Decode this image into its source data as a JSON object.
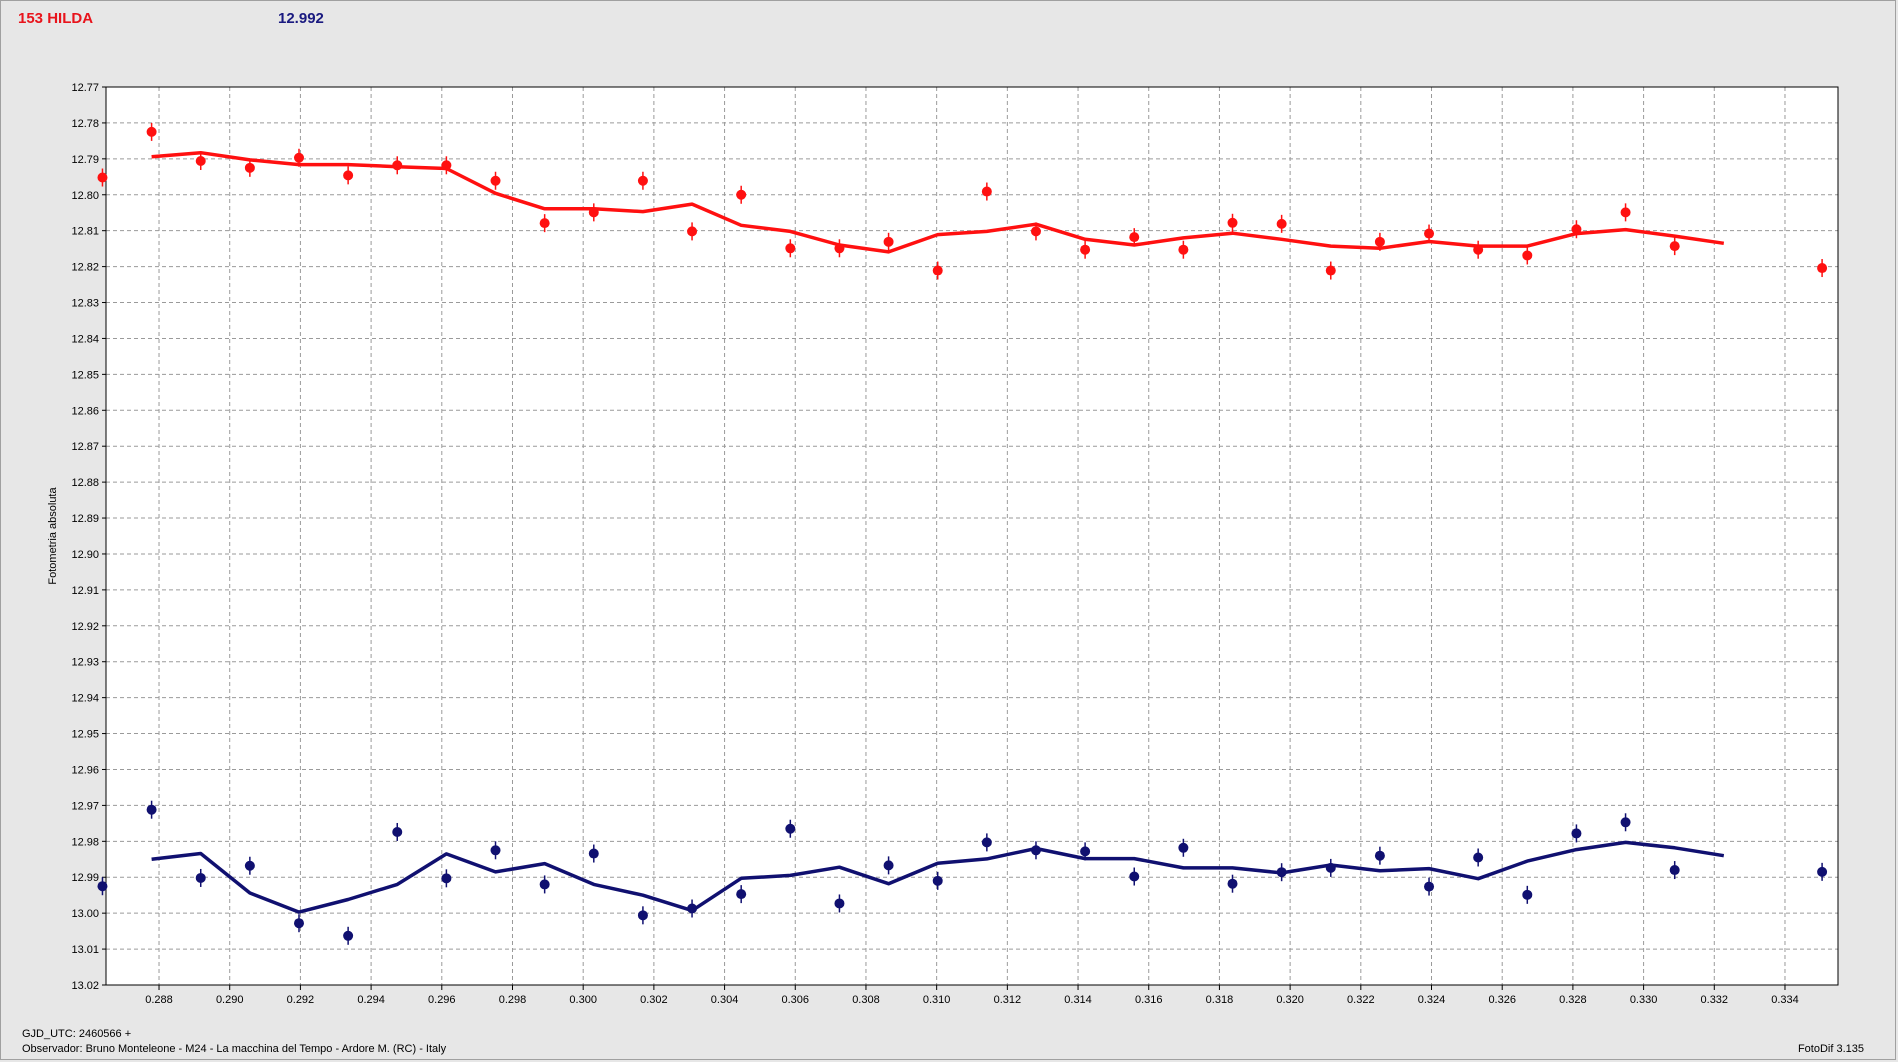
{
  "header": {
    "object_name": "153 HILDA",
    "magnitude": "12.992"
  },
  "footer": {
    "gjd": "GJD_UTC: 2460566 +",
    "observer": "Observador: Bruno Monteleone - M24 - La macchina del Tempo - Ardore M. (RC) - Italy",
    "software": "FotoDif 3.135"
  },
  "colors": {
    "target": "#ff1010",
    "comparison": "#101070",
    "grid": "#9a9a9a"
  },
  "chart_data": {
    "type": "scatter",
    "ylabel": "Fotometria absoluta",
    "xlabel": "",
    "xlim": [
      0.2865,
      0.3355
    ],
    "ylim": [
      12.77,
      13.02
    ],
    "y_inverted": true,
    "grid": true,
    "x_ticks": [
      "0.288",
      "0.290",
      "0.292",
      "0.294",
      "0.296",
      "0.298",
      "0.300",
      "0.302",
      "0.304",
      "0.306",
      "0.308",
      "0.310",
      "0.312",
      "0.314",
      "0.316",
      "0.318",
      "0.320",
      "0.322",
      "0.324",
      "0.326",
      "0.328",
      "0.330",
      "0.332",
      "0.334"
    ],
    "y_ticks": [
      "12.77",
      "12.78",
      "12.79",
      "12.80",
      "12.81",
      "12.82",
      "12.83",
      "12.84",
      "12.85",
      "12.86",
      "12.87",
      "12.88",
      "12.89",
      "12.90",
      "12.91",
      "12.92",
      "12.93",
      "12.94",
      "12.95",
      "12.96",
      "12.97",
      "12.98",
      "12.99",
      "13.00",
      "13.01",
      "13.02"
    ],
    "series": [
      {
        "color": "#ff1010",
        "points": [
          [
            0.2864,
            12.7952
          ],
          [
            0.28779,
            12.7825
          ],
          [
            0.28918,
            12.7906
          ],
          [
            0.29057,
            12.7925
          ],
          [
            0.29196,
            12.7897
          ],
          [
            0.29335,
            12.7946
          ],
          [
            0.29474,
            12.7918
          ],
          [
            0.29613,
            12.7918
          ],
          [
            0.29752,
            12.7961
          ],
          [
            0.29891,
            12.8079
          ],
          [
            0.3003,
            12.8049
          ],
          [
            0.30169,
            12.7961
          ],
          [
            0.30308,
            12.8102
          ],
          [
            0.30447,
            12.8
          ],
          [
            0.30586,
            12.8149
          ],
          [
            0.30725,
            12.8149
          ],
          [
            0.30864,
            12.8131
          ],
          [
            0.31003,
            12.8211
          ],
          [
            0.31142,
            12.7991
          ],
          [
            0.31281,
            12.8102
          ],
          [
            0.3142,
            12.8153
          ],
          [
            0.31559,
            12.8118
          ],
          [
            0.31698,
            12.8153
          ],
          [
            0.31837,
            12.8078
          ],
          [
            0.31976,
            12.8081
          ],
          [
            0.32115,
            12.8211
          ],
          [
            0.32254,
            12.8131
          ],
          [
            0.32393,
            12.8108
          ],
          [
            0.32532,
            12.8153
          ],
          [
            0.32671,
            12.8169
          ],
          [
            0.3281,
            12.8096
          ],
          [
            0.32949,
            12.8049
          ],
          [
            0.33088,
            12.8143
          ],
          [
            0.33505,
            12.8204
          ]
        ],
        "smooth": [
          [
            0.28779,
            12.7894
          ],
          [
            0.28918,
            12.7883
          ],
          [
            0.29057,
            12.7903
          ],
          [
            0.29196,
            12.7916
          ],
          [
            0.29335,
            12.7916
          ],
          [
            0.29474,
            12.7922
          ],
          [
            0.29613,
            12.7927
          ],
          [
            0.29752,
            12.7996
          ],
          [
            0.29891,
            12.8039
          ],
          [
            0.3003,
            12.8039
          ],
          [
            0.30169,
            12.8047
          ],
          [
            0.30308,
            12.8026
          ],
          [
            0.30447,
            12.8085
          ],
          [
            0.30586,
            12.8102
          ],
          [
            0.30725,
            12.814
          ],
          [
            0.30864,
            12.8159
          ],
          [
            0.31003,
            12.8111
          ],
          [
            0.31142,
            12.8102
          ],
          [
            0.31281,
            12.8082
          ],
          [
            0.3142,
            12.8124
          ],
          [
            0.31559,
            12.814
          ],
          [
            0.31698,
            12.812
          ],
          [
            0.31837,
            12.8107
          ],
          [
            0.31976,
            12.8124
          ],
          [
            0.32115,
            12.8143
          ],
          [
            0.32254,
            12.8149
          ],
          [
            0.32393,
            12.813
          ],
          [
            0.32532,
            12.8143
          ],
          [
            0.32671,
            12.8143
          ],
          [
            0.3281,
            12.8108
          ],
          [
            0.32949,
            12.8097
          ],
          [
            0.33088,
            12.8115
          ],
          [
            0.33227,
            12.8135
          ]
        ]
      },
      {
        "color": "#101070",
        "points": [
          [
            0.2864,
            12.9925
          ],
          [
            0.28779,
            12.9712
          ],
          [
            0.28918,
            12.9902
          ],
          [
            0.29057,
            12.9868
          ],
          [
            0.29196,
            13.0028
          ],
          [
            0.29335,
            13.0063
          ],
          [
            0.29474,
            12.9774
          ],
          [
            0.29613,
            12.9903
          ],
          [
            0.29752,
            12.9825
          ],
          [
            0.29891,
            12.992
          ],
          [
            0.3003,
            12.9834
          ],
          [
            0.30169,
            13.0006
          ],
          [
            0.30308,
            12.9987
          ],
          [
            0.30447,
            12.9947
          ],
          [
            0.30586,
            12.9765
          ],
          [
            0.30725,
            12.9973
          ],
          [
            0.30864,
            12.9867
          ],
          [
            0.31003,
            12.991
          ],
          [
            0.31142,
            12.9803
          ],
          [
            0.31281,
            12.9825
          ],
          [
            0.3142,
            12.9828
          ],
          [
            0.31559,
            12.9898
          ],
          [
            0.31698,
            12.9818
          ],
          [
            0.31837,
            12.9918
          ],
          [
            0.31976,
            12.9886
          ],
          [
            0.32115,
            12.9874
          ],
          [
            0.32254,
            12.984
          ],
          [
            0.32393,
            12.9926
          ],
          [
            0.32532,
            12.9845
          ],
          [
            0.32671,
            12.9949
          ],
          [
            0.3281,
            12.9778
          ],
          [
            0.32949,
            12.9747
          ],
          [
            0.33088,
            12.988
          ],
          [
            0.33505,
            12.9885
          ]
        ],
        "smooth": [
          [
            0.28779,
            12.985
          ],
          [
            0.28918,
            12.9834
          ],
          [
            0.29057,
            12.9944
          ],
          [
            0.29196,
            12.9997
          ],
          [
            0.29335,
            12.9962
          ],
          [
            0.29474,
            12.992
          ],
          [
            0.29613,
            12.9835
          ],
          [
            0.29752,
            12.9885
          ],
          [
            0.29891,
            12.9862
          ],
          [
            0.3003,
            12.992
          ],
          [
            0.30169,
            12.995
          ],
          [
            0.30308,
            12.9993
          ],
          [
            0.30447,
            12.9903
          ],
          [
            0.30586,
            12.9895
          ],
          [
            0.30725,
            12.9872
          ],
          [
            0.30864,
            12.9918
          ],
          [
            0.31003,
            12.9861
          ],
          [
            0.31142,
            12.9849
          ],
          [
            0.31281,
            12.982
          ],
          [
            0.3142,
            12.9848
          ],
          [
            0.31559,
            12.9848
          ],
          [
            0.31698,
            12.9874
          ],
          [
            0.31837,
            12.9874
          ],
          [
            0.31976,
            12.9888
          ],
          [
            0.32115,
            12.9866
          ],
          [
            0.32254,
            12.9882
          ],
          [
            0.32393,
            12.9876
          ],
          [
            0.32532,
            12.9904
          ],
          [
            0.32671,
            12.9855
          ],
          [
            0.3281,
            12.9823
          ],
          [
            0.32949,
            12.9803
          ],
          [
            0.33088,
            12.9818
          ],
          [
            0.33227,
            12.984
          ]
        ]
      }
    ]
  }
}
